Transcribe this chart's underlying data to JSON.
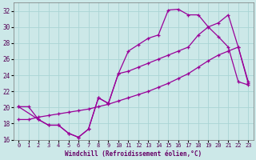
{
  "xlabel": "Windchill (Refroidissement éolien,°C)",
  "background_color": "#cce8e8",
  "grid_color": "#aad4d4",
  "line_color": "#990099",
  "xlim": [
    -0.5,
    23.5
  ],
  "ylim": [
    16,
    33
  ],
  "yticks": [
    16,
    18,
    20,
    22,
    24,
    26,
    28,
    30,
    32
  ],
  "xticks": [
    0,
    1,
    2,
    3,
    4,
    5,
    6,
    7,
    8,
    9,
    10,
    11,
    12,
    13,
    14,
    15,
    16,
    17,
    18,
    19,
    20,
    21,
    22,
    23
  ],
  "series": [
    {
      "x": [
        0,
        1,
        2,
        3,
        4,
        5,
        6,
        7,
        8,
        9,
        10,
        11,
        12,
        13,
        14,
        15,
        16,
        17,
        18,
        19,
        20,
        21,
        22,
        23
      ],
      "y": [
        20.1,
        20.1,
        18.5,
        17.8,
        17.8,
        16.8,
        16.3,
        17.3,
        21.2,
        20.5,
        24.2,
        27.0,
        27.8,
        28.6,
        29.0,
        32.1,
        32.2,
        31.5,
        31.5,
        30.0,
        28.8,
        27.5,
        23.2,
        22.8
      ]
    },
    {
      "x": [
        0,
        1,
        2,
        3,
        4,
        5,
        6,
        7,
        8,
        9,
        10,
        11,
        12,
        13,
        14,
        15,
        16,
        17,
        18,
        19,
        20,
        21,
        22,
        23
      ],
      "y": [
        18.5,
        18.5,
        18.8,
        19.0,
        19.2,
        19.4,
        19.6,
        19.8,
        20.1,
        20.4,
        20.8,
        21.2,
        21.6,
        22.0,
        22.5,
        23.0,
        23.6,
        24.2,
        25.0,
        25.8,
        26.5,
        27.0,
        27.5,
        23.0
      ]
    },
    {
      "x": [
        0,
        2,
        3,
        4,
        5,
        6,
        7,
        8,
        9,
        10,
        11,
        12,
        13,
        14,
        15,
        16,
        17,
        18,
        19,
        20,
        21,
        22,
        23
      ],
      "y": [
        20.1,
        18.5,
        17.8,
        17.8,
        16.8,
        16.3,
        17.3,
        21.2,
        20.5,
        24.2,
        24.5,
        25.0,
        25.5,
        26.0,
        26.5,
        27.0,
        27.5,
        29.0,
        30.0,
        30.5,
        31.5,
        27.5,
        23.2
      ]
    }
  ]
}
